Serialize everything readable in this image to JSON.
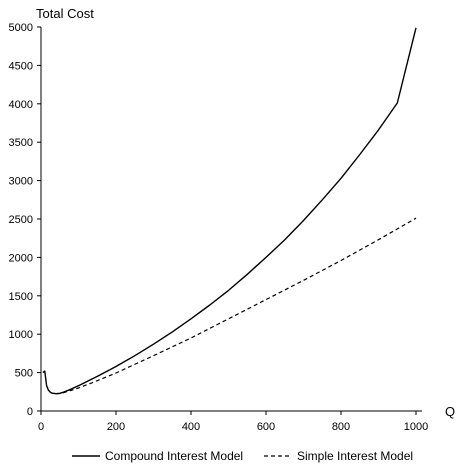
{
  "chart_data": {
    "type": "line",
    "title": "",
    "ylabel": "Total Cost",
    "xlabel": "Q",
    "xlim": [
      0,
      1000
    ],
    "ylim": [
      0,
      5000
    ],
    "x_ticks": [
      0,
      200,
      400,
      600,
      800,
      1000
    ],
    "y_ticks": [
      0,
      500,
      1000,
      1500,
      2000,
      2500,
      3000,
      3500,
      4000,
      4500,
      5000
    ],
    "grid": false,
    "legend_position": "bottom",
    "series": [
      {
        "name": "Compound Interest Model",
        "style": "solid",
        "color": "#000000",
        "points": [
          [
            5,
            500
          ],
          [
            10,
            520
          ],
          [
            15,
            330
          ],
          [
            20,
            270
          ],
          [
            25,
            245
          ],
          [
            30,
            232
          ],
          [
            40,
            225
          ],
          [
            50,
            230
          ],
          [
            60,
            245
          ],
          [
            80,
            285
          ],
          [
            100,
            330
          ],
          [
            150,
            450
          ],
          [
            200,
            580
          ],
          [
            250,
            720
          ],
          [
            300,
            870
          ],
          [
            350,
            1030
          ],
          [
            400,
            1200
          ],
          [
            450,
            1380
          ],
          [
            500,
            1570
          ],
          [
            550,
            1780
          ],
          [
            600,
            2000
          ],
          [
            650,
            2230
          ],
          [
            700,
            2480
          ],
          [
            750,
            2750
          ],
          [
            800,
            3030
          ],
          [
            850,
            3340
          ],
          [
            900,
            3660
          ],
          [
            950,
            4010
          ],
          [
            1000,
            4990
          ]
        ]
      },
      {
        "name": "Simple Interest Model",
        "style": "dashed",
        "color": "#000000",
        "points": [
          [
            40,
            225
          ],
          [
            50,
            228
          ],
          [
            60,
            238
          ],
          [
            80,
            268
          ],
          [
            100,
            300
          ],
          [
            150,
            395
          ],
          [
            200,
            495
          ],
          [
            300,
            720
          ],
          [
            400,
            950
          ],
          [
            500,
            1200
          ],
          [
            600,
            1450
          ],
          [
            700,
            1700
          ],
          [
            800,
            1960
          ],
          [
            900,
            2230
          ],
          [
            1000,
            2510
          ]
        ]
      }
    ]
  }
}
